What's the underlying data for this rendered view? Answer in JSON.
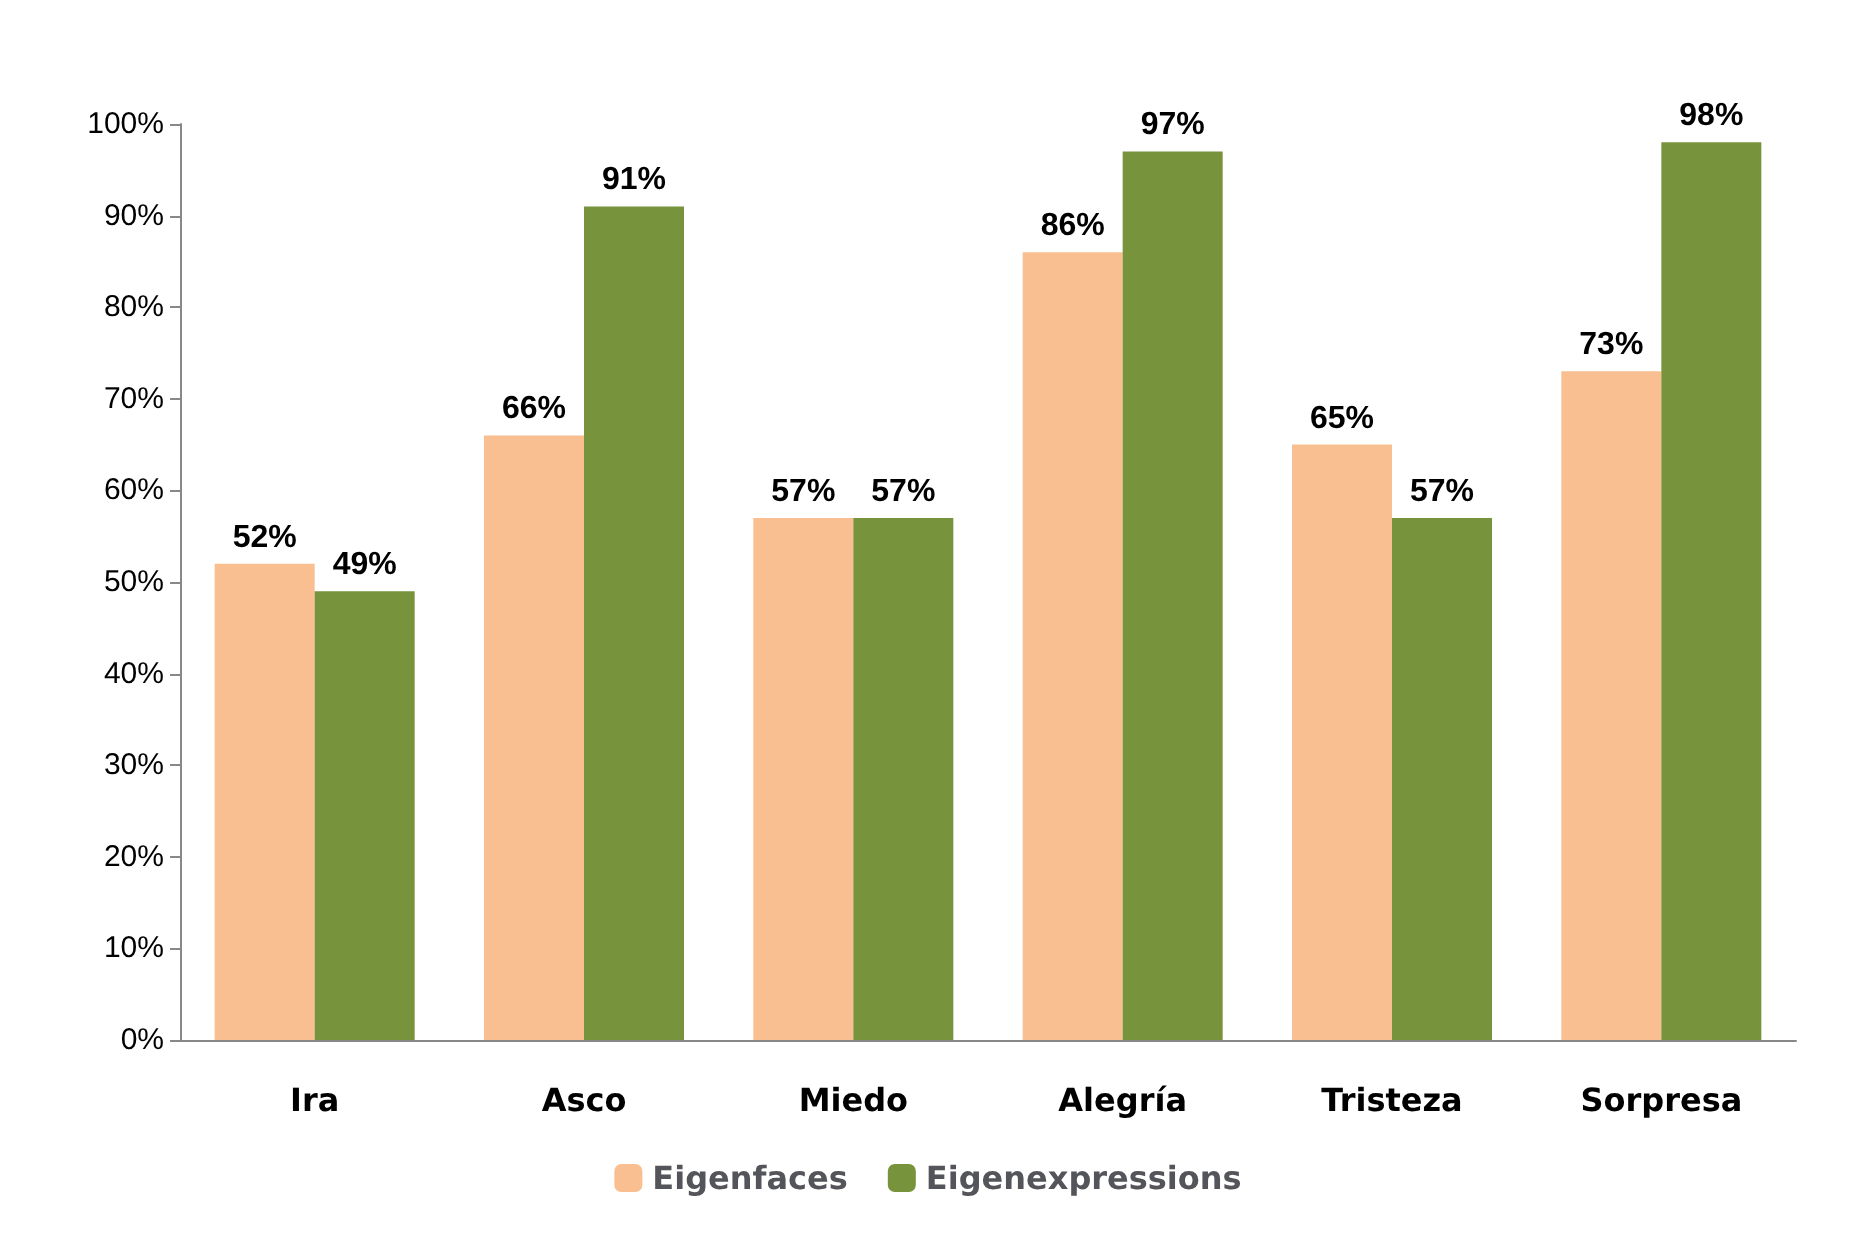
{
  "chart_data": {
    "type": "bar",
    "categories": [
      "Ira",
      "Asco",
      "Miedo",
      "Alegría",
      "Tristeza",
      "Sorpresa"
    ],
    "series": [
      {
        "name": "Eigenfaces",
        "color": "#f9bf90",
        "values": [
          52,
          66,
          57,
          86,
          65,
          73
        ],
        "value_labels": [
          "52%",
          "66%",
          "57%",
          "86%",
          "65%",
          "73%"
        ]
      },
      {
        "name": "Eigenexpressions",
        "color": "#77933c",
        "values": [
          49,
          91,
          57,
          97,
          57,
          98
        ],
        "value_labels": [
          "49%",
          "91%",
          "57%",
          "97%",
          "57%",
          "98%"
        ]
      }
    ],
    "ylim": [
      0,
      100
    ],
    "yticks": [
      {
        "value": 0,
        "label": "0%"
      },
      {
        "value": 10,
        "label": "10%"
      },
      {
        "value": 20,
        "label": "20%"
      },
      {
        "value": 30,
        "label": "30%"
      },
      {
        "value": 40,
        "label": "40%"
      },
      {
        "value": 50,
        "label": "50%"
      },
      {
        "value": 60,
        "label": "60%"
      },
      {
        "value": 70,
        "label": "70%"
      },
      {
        "value": 80,
        "label": "80%"
      },
      {
        "value": 90,
        "label": "90%"
      },
      {
        "value": 100,
        "label": "100%"
      }
    ],
    "grid": false,
    "legend": "bottom"
  }
}
